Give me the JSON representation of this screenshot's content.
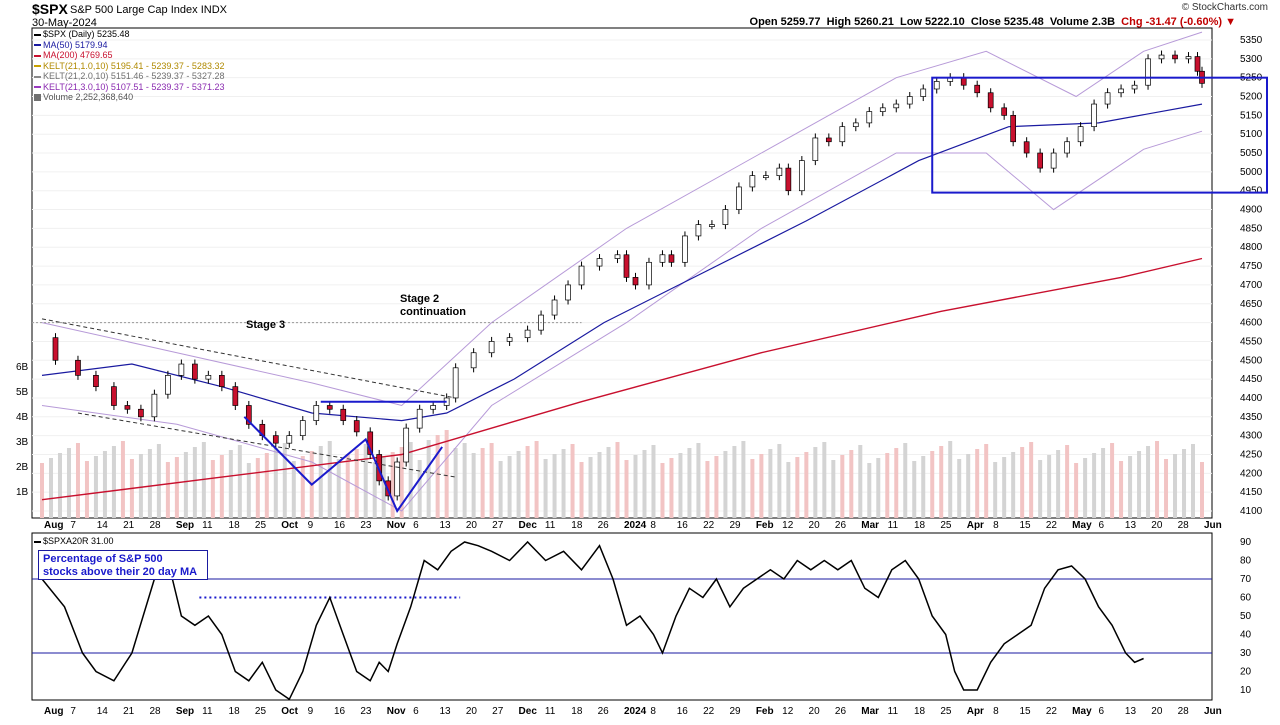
{
  "header": {
    "symbol": "$SPX",
    "name": "S&P 500 Large Cap Index",
    "exchange": "INDX",
    "date": "30-May-2024",
    "brand": "© StockCharts.com",
    "open": "Open 5259.77",
    "high": "High 5260.21",
    "low": "Low 5222.10",
    "close": "Close 5235.48",
    "volume": "Volume 2.3B",
    "chg": "Chg -31.47 (-0.60%)"
  },
  "legend": [
    {
      "text": "$SPX (Daily) 5235.48",
      "color": "#000000"
    },
    {
      "text": "MA(50) 5179.94",
      "color": "#1a1aa0"
    },
    {
      "text": "MA(200) 4769.65",
      "color": "#c8102e"
    },
    {
      "text": "KELT(21,1.0,10) 5195.41 - 5239.37 - 5283.32",
      "color": "#c8a000"
    },
    {
      "text": "KELT(21,2.0,10) 5151.46 - 5239.37 - 5327.28",
      "color": "#8a8a8a"
    },
    {
      "text": "KELT(21,3.0,10) 5107.51 - 5239.37 - 5371.23",
      "color": "#9a3ac0"
    },
    {
      "text": "Volume 2,252,368,640",
      "color": "#707070"
    }
  ],
  "annotations": {
    "stage3": "Stage 3",
    "stage2_line1": "Stage 2",
    "stage2_line2": "continuation",
    "pct_line1": "Percentage of S&P 500",
    "pct_line2": "stocks above their 20 day MA"
  },
  "indicator_legend": "$SPXA20R 31.00",
  "chart_data": [
    {
      "type": "candlestick",
      "title": "$SPX S&P 500 Large Cap Index",
      "x_labels": [
        "Aug",
        "7",
        "14",
        "21",
        "28",
        "Sep",
        "11",
        "18",
        "25",
        "Oct",
        "9",
        "16",
        "23",
        "Nov",
        "6",
        "13",
        "20",
        "27",
        "Dec",
        "11",
        "18",
        "26",
        "2024",
        "8",
        "16",
        "22",
        "29",
        "Feb",
        "12",
        "20",
        "26",
        "Mar",
        "11",
        "18",
        "25",
        "Apr",
        "8",
        "15",
        "22",
        "May",
        "6",
        "13",
        "20",
        "28",
        "Jun"
      ],
      "price_ticks": [
        4100,
        4150,
        4200,
        4250,
        4300,
        4350,
        4400,
        4450,
        4500,
        4550,
        4600,
        4650,
        4700,
        4750,
        4800,
        4850,
        4900,
        4950,
        5000,
        5050,
        5100,
        5150,
        5200,
        5250,
        5300,
        5350
      ],
      "volume_ticks": [
        "1B",
        "2B",
        "3B",
        "4B",
        "5B",
        "6B"
      ],
      "ylim": [
        4090,
        5370
      ],
      "close_path": [
        [
          0,
          4560
        ],
        [
          3,
          4500
        ],
        [
          8,
          4460
        ],
        [
          12,
          4430
        ],
        [
          16,
          4380
        ],
        [
          19,
          4370
        ],
        [
          22,
          4350
        ],
        [
          25,
          4410
        ],
        [
          28,
          4460
        ],
        [
          31,
          4490
        ],
        [
          34,
          4450
        ],
        [
          37,
          4460
        ],
        [
          40,
          4430
        ],
        [
          43,
          4380
        ],
        [
          46,
          4330
        ],
        [
          49,
          4300
        ],
        [
          52,
          4280
        ],
        [
          55,
          4300
        ],
        [
          58,
          4340
        ],
        [
          61,
          4380
        ],
        [
          64,
          4370
        ],
        [
          67,
          4340
        ],
        [
          70,
          4310
        ],
        [
          73,
          4250
        ],
        [
          75,
          4180
        ],
        [
          77,
          4140
        ],
        [
          79,
          4230
        ],
        [
          81,
          4320
        ],
        [
          84,
          4370
        ],
        [
          87,
          4380
        ],
        [
          90,
          4400
        ],
        [
          92,
          4480
        ],
        [
          96,
          4520
        ],
        [
          100,
          4550
        ],
        [
          104,
          4560
        ],
        [
          108,
          4580
        ],
        [
          111,
          4620
        ],
        [
          114,
          4660
        ],
        [
          117,
          4700
        ],
        [
          120,
          4750
        ],
        [
          124,
          4770
        ],
        [
          128,
          4780
        ],
        [
          130,
          4720
        ],
        [
          132,
          4700
        ],
        [
          135,
          4760
        ],
        [
          138,
          4780
        ],
        [
          140,
          4760
        ],
        [
          143,
          4830
        ],
        [
          146,
          4860
        ],
        [
          149,
          4860
        ],
        [
          152,
          4900
        ],
        [
          155,
          4960
        ],
        [
          158,
          4990
        ],
        [
          161,
          4990
        ],
        [
          164,
          5010
        ],
        [
          166,
          4950
        ],
        [
          169,
          5030
        ],
        [
          172,
          5090
        ],
        [
          175,
          5080
        ],
        [
          178,
          5120
        ],
        [
          181,
          5130
        ],
        [
          184,
          5160
        ],
        [
          187,
          5170
        ],
        [
          190,
          5180
        ],
        [
          193,
          5200
        ],
        [
          196,
          5220
        ],
        [
          199,
          5240
        ],
        [
          202,
          5250
        ],
        [
          205,
          5230
        ],
        [
          208,
          5210
        ],
        [
          211,
          5170
        ],
        [
          214,
          5150
        ],
        [
          216,
          5080
        ],
        [
          219,
          5050
        ],
        [
          222,
          5010
        ],
        [
          225,
          5050
        ],
        [
          228,
          5080
        ],
        [
          231,
          5120
        ],
        [
          234,
          5180
        ],
        [
          237,
          5210
        ],
        [
          240,
          5220
        ],
        [
          243,
          5230
        ],
        [
          246,
          5300
        ],
        [
          249,
          5310
        ],
        [
          252,
          5300
        ],
        [
          255,
          5306
        ],
        [
          257,
          5267
        ],
        [
          258,
          5235
        ]
      ],
      "ma50": [
        [
          0,
          4460
        ],
        [
          20,
          4490
        ],
        [
          40,
          4430
        ],
        [
          60,
          4360
        ],
        [
          80,
          4340
        ],
        [
          90,
          4360
        ],
        [
          105,
          4450
        ],
        [
          125,
          4600
        ],
        [
          145,
          4720
        ],
        [
          170,
          4870
        ],
        [
          195,
          5030
        ],
        [
          215,
          5120
        ],
        [
          235,
          5130
        ],
        [
          258,
          5180
        ]
      ],
      "ma200": [
        [
          0,
          4130
        ],
        [
          40,
          4190
        ],
        [
          80,
          4250
        ],
        [
          120,
          4390
        ],
        [
          160,
          4520
        ],
        [
          200,
          4630
        ],
        [
          240,
          4720
        ],
        [
          258,
          4770
        ]
      ],
      "kelt_upper": [
        [
          0,
          4600
        ],
        [
          30,
          4520
        ],
        [
          60,
          4440
        ],
        [
          80,
          4380
        ],
        [
          100,
          4600
        ],
        [
          130,
          4850
        ],
        [
          160,
          5050
        ],
        [
          190,
          5250
        ],
        [
          210,
          5320
        ],
        [
          230,
          5200
        ],
        [
          245,
          5320
        ],
        [
          258,
          5371
        ]
      ],
      "kelt_lower": [
        [
          0,
          4380
        ],
        [
          30,
          4330
        ],
        [
          60,
          4230
        ],
        [
          80,
          4100
        ],
        [
          100,
          4380
        ],
        [
          130,
          4600
        ],
        [
          160,
          4850
        ],
        [
          190,
          5050
        ],
        [
          210,
          5050
        ],
        [
          225,
          4900
        ],
        [
          245,
          5060
        ],
        [
          258,
          5108
        ]
      ]
    },
    {
      "type": "line",
      "title": "$SPXA20R",
      "series_label": "Percentage of S&P 500 stocks above their 20 day MA",
      "last": 31.0,
      "yticks": [
        10,
        20,
        30,
        40,
        50,
        60,
        70,
        80,
        90
      ],
      "ylim": [
        0,
        95
      ],
      "hlines": [
        30,
        70
      ],
      "values": [
        [
          0,
          70
        ],
        [
          5,
          55
        ],
        [
          9,
          30
        ],
        [
          12,
          20
        ],
        [
          16,
          15
        ],
        [
          20,
          30
        ],
        [
          25,
          70
        ],
        [
          28,
          80
        ],
        [
          31,
          50
        ],
        [
          34,
          45
        ],
        [
          37,
          50
        ],
        [
          40,
          40
        ],
        [
          43,
          20
        ],
        [
          46,
          15
        ],
        [
          49,
          25
        ],
        [
          52,
          10
        ],
        [
          55,
          5
        ],
        [
          58,
          20
        ],
        [
          61,
          45
        ],
        [
          64,
          60
        ],
        [
          67,
          40
        ],
        [
          70,
          20
        ],
        [
          73,
          15
        ],
        [
          75,
          25
        ],
        [
          77,
          20
        ],
        [
          79,
          35
        ],
        [
          82,
          55
        ],
        [
          85,
          80
        ],
        [
          88,
          75
        ],
        [
          91,
          85
        ],
        [
          94,
          90
        ],
        [
          97,
          88
        ],
        [
          100,
          85
        ],
        [
          104,
          80
        ],
        [
          108,
          90
        ],
        [
          112,
          80
        ],
        [
          116,
          85
        ],
        [
          120,
          75
        ],
        [
          124,
          88
        ],
        [
          127,
          70
        ],
        [
          130,
          45
        ],
        [
          133,
          50
        ],
        [
          136,
          40
        ],
        [
          138,
          30
        ],
        [
          141,
          50
        ],
        [
          144,
          65
        ],
        [
          147,
          60
        ],
        [
          150,
          70
        ],
        [
          153,
          55
        ],
        [
          156,
          65
        ],
        [
          159,
          70
        ],
        [
          162,
          75
        ],
        [
          165,
          70
        ],
        [
          168,
          80
        ],
        [
          171,
          75
        ],
        [
          174,
          80
        ],
        [
          177,
          75
        ],
        [
          180,
          80
        ],
        [
          183,
          65
        ],
        [
          186,
          60
        ],
        [
          189,
          75
        ],
        [
          192,
          80
        ],
        [
          195,
          70
        ],
        [
          198,
          50
        ],
        [
          201,
          40
        ],
        [
          203,
          20
        ],
        [
          205,
          10
        ],
        [
          208,
          10
        ],
        [
          211,
          25
        ],
        [
          214,
          35
        ],
        [
          217,
          40
        ],
        [
          220,
          45
        ],
        [
          223,
          65
        ],
        [
          226,
          75
        ],
        [
          229,
          77
        ],
        [
          232,
          70
        ],
        [
          235,
          55
        ],
        [
          238,
          45
        ],
        [
          241,
          30
        ],
        [
          243,
          25
        ],
        [
          245,
          27
        ]
      ]
    }
  ]
}
